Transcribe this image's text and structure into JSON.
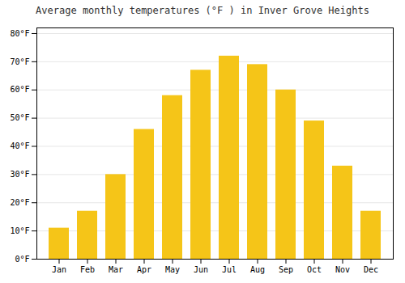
{
  "chart_data": {
    "type": "bar",
    "title": "Average monthly temperatures (°F ) in Inver Grove Heights",
    "categories": [
      "Jan",
      "Feb",
      "Mar",
      "Apr",
      "May",
      "Jun",
      "Jul",
      "Aug",
      "Sep",
      "Oct",
      "Nov",
      "Dec"
    ],
    "values": [
      11,
      17,
      30,
      46,
      58,
      67,
      72,
      69,
      60,
      49,
      33,
      17
    ],
    "color": "#F5C518",
    "ylim": [
      0,
      82
    ],
    "yticks": [
      {
        "value": 0,
        "label": "0°F"
      },
      {
        "value": 10,
        "label": "10°F"
      },
      {
        "value": 20,
        "label": "20°F"
      },
      {
        "value": 30,
        "label": "30°F"
      },
      {
        "value": 40,
        "label": "40°F"
      },
      {
        "value": 50,
        "label": "50°F"
      },
      {
        "value": 60,
        "label": "60°F"
      },
      {
        "value": 70,
        "label": "70°F"
      },
      {
        "value": 80,
        "label": "80°F"
      }
    ],
    "grid": true
  }
}
